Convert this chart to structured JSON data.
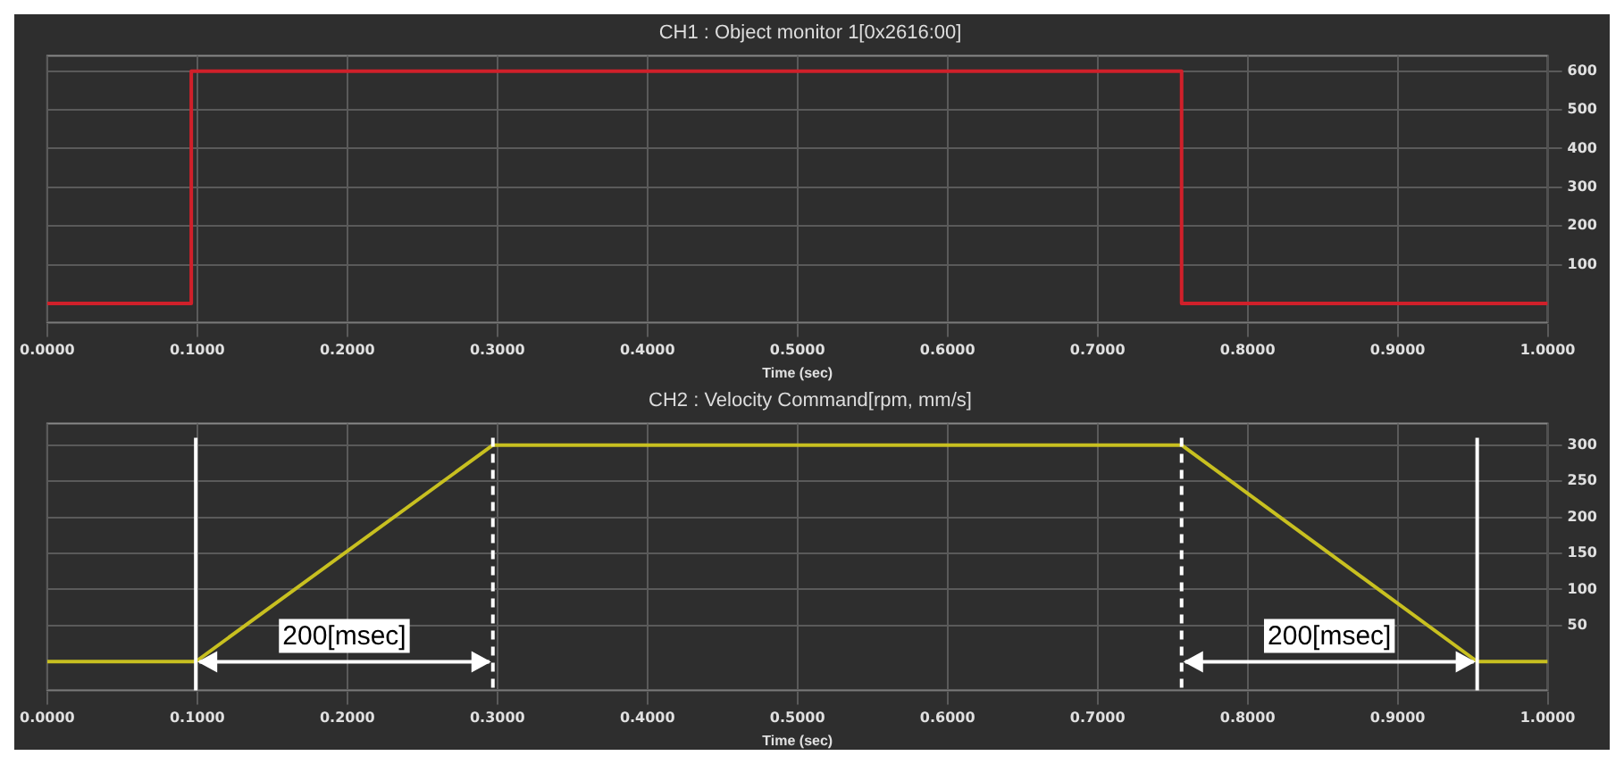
{
  "chart_data": [
    {
      "type": "step",
      "title": "CH1 : Object monitor 1[0x2616:00]",
      "xlabel": "Time (sec)",
      "x": [
        0,
        0.096,
        0.756,
        1.0
      ],
      "series": [
        {
          "color": "#d0202a",
          "values": [
            0,
            600,
            0,
            0
          ]
        }
      ],
      "xlim": [
        0,
        1.0
      ],
      "xticks": [
        {
          "value": 0,
          "label": "0.0000"
        },
        {
          "value": 0.1,
          "label": "0.1000"
        },
        {
          "value": 0.2,
          "label": "0.2000"
        },
        {
          "value": 0.3,
          "label": "0.3000"
        },
        {
          "value": 0.4,
          "label": "0.4000"
        },
        {
          "value": 0.5,
          "label": "0.5000"
        },
        {
          "value": 0.6,
          "label": "0.6000"
        },
        {
          "value": 0.7,
          "label": "0.7000"
        },
        {
          "value": 0.8,
          "label": "0.8000"
        },
        {
          "value": 0.9,
          "label": "0.9000"
        },
        {
          "value": 1.0,
          "label": "1.0000"
        }
      ],
      "ylim": [
        -50,
        640
      ],
      "yticks": [
        100,
        200,
        300,
        400,
        500,
        600
      ],
      "grid": true,
      "legend": false,
      "marker": "none"
    },
    {
      "type": "line",
      "title": "CH2 : Velocity Command[rpm, mm/s]",
      "xlabel": "Time (sec)",
      "x": [
        0,
        0.099,
        0.297,
        0.756,
        0.953,
        1.0
      ],
      "series": [
        {
          "color": "#c8c020",
          "values": [
            0,
            0,
            300,
            300,
            0,
            0
          ]
        }
      ],
      "xlim": [
        0,
        1.0
      ],
      "xticks": [
        {
          "value": 0,
          "label": "0.0000"
        },
        {
          "value": 0.1,
          "label": "0.1000"
        },
        {
          "value": 0.2,
          "label": "0.2000"
        },
        {
          "value": 0.3,
          "label": "0.3000"
        },
        {
          "value": 0.4,
          "label": "0.4000"
        },
        {
          "value": 0.5,
          "label": "0.5000"
        },
        {
          "value": 0.6,
          "label": "0.6000"
        },
        {
          "value": 0.7,
          "label": "0.7000"
        },
        {
          "value": 0.8,
          "label": "0.8000"
        },
        {
          "value": 0.9,
          "label": "0.9000"
        },
        {
          "value": 1.0,
          "label": "1.0000"
        }
      ],
      "ylim": [
        -40,
        330
      ],
      "yticks": [
        50,
        100,
        150,
        200,
        250,
        300
      ],
      "grid": true,
      "legend": false,
      "marker": "none",
      "ref_lines": [
        {
          "axis": "x",
          "value": 0.099,
          "color": "#ffffff",
          "line_style": "solid"
        },
        {
          "axis": "x",
          "value": 0.297,
          "color": "#ffffff",
          "line_style": "dashed"
        },
        {
          "axis": "x",
          "value": 0.756,
          "color": "#ffffff",
          "line_style": "dashed"
        },
        {
          "axis": "x",
          "value": 0.953,
          "color": "#ffffff",
          "line_style": "solid"
        }
      ],
      "annotations": [
        "200[msec]",
        "200[msec]"
      ]
    }
  ]
}
